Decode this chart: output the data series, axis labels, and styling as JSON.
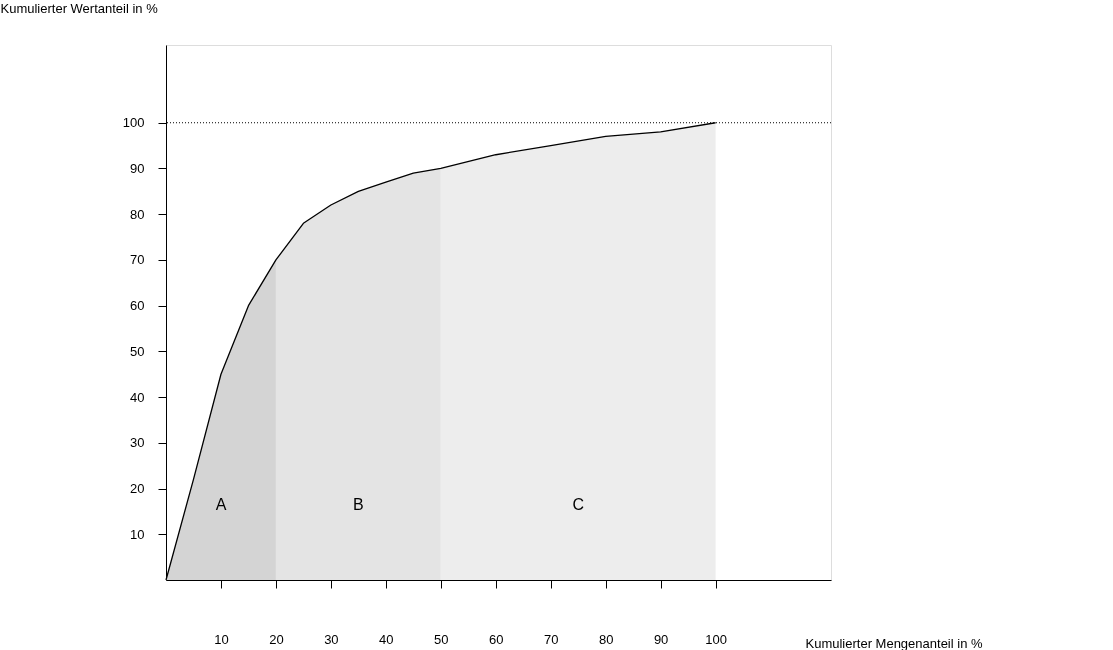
{
  "chart_data": {
    "type": "area",
    "xlabel": "Kumulierter Mengenanteil in %",
    "ylabel": "Kumulierter Wertanteil in %",
    "xlim": [
      0,
      121
    ],
    "ylim": [
      0,
      117
    ],
    "xticks": [
      10,
      20,
      30,
      40,
      50,
      60,
      70,
      80,
      90,
      100
    ],
    "yticks": [
      10,
      20,
      30,
      40,
      50,
      60,
      70,
      80,
      90,
      100
    ],
    "series": [
      {
        "name": "A",
        "color": "#d4d4d4",
        "x": [
          0,
          5,
          10,
          15,
          20
        ],
        "values": [
          0,
          22,
          45,
          60,
          70
        ]
      },
      {
        "name": "B",
        "color": "#e4e4e4",
        "x": [
          20,
          25,
          30,
          35,
          40,
          45,
          50
        ],
        "values": [
          70,
          78,
          82,
          85,
          87,
          89,
          90
        ]
      },
      {
        "name": "C",
        "color": "#ededed",
        "x": [
          50,
          60,
          70,
          80,
          90,
          100
        ],
        "values": [
          90,
          93,
          95,
          97,
          98,
          100
        ]
      },
      {
        "type": "line",
        "color": "#000000",
        "x": [
          0,
          5,
          10,
          15,
          20,
          25,
          30,
          35,
          40,
          45,
          50,
          60,
          70,
          80,
          90,
          100
        ],
        "values": [
          0,
          22,
          45,
          60,
          70,
          78,
          82,
          85,
          87,
          89,
          90,
          93,
          95,
          97,
          98,
          100
        ]
      }
    ],
    "ref_lines": [
      {
        "axis": "y",
        "value": 100,
        "line_style": "dotted",
        "color": "#000000"
      }
    ]
  }
}
